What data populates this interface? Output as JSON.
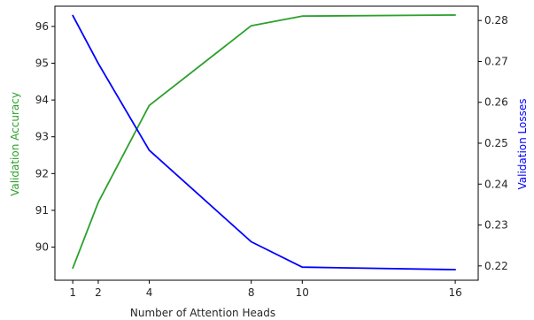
{
  "chart_data": {
    "type": "line",
    "title": "",
    "xlabel": "Number of Attention Heads",
    "ylabel_left": "Validation Accuracy",
    "ylabel_right": "Validation Losses",
    "x": [
      1,
      2,
      4,
      8,
      10,
      16
    ],
    "x_ticks": [
      1,
      2,
      4,
      8,
      10,
      16
    ],
    "xlim": [
      0.3,
      16.9
    ],
    "ylim_left": [
      89.1,
      96.55
    ],
    "ylim_right": [
      0.2165,
      0.2835
    ],
    "y_ticks_left": [
      90,
      91,
      92,
      93,
      94,
      95,
      96
    ],
    "y_ticks_right": [
      0.22,
      0.23,
      0.24,
      0.25,
      0.26,
      0.27,
      0.28
    ],
    "series": [
      {
        "axis": "left",
        "color": "#2ca02c",
        "values": [
          89.43,
          91.22,
          93.85,
          96.02,
          96.28,
          96.31
        ]
      },
      {
        "axis": "right",
        "color": "#0000ff",
        "values": [
          0.2812,
          0.2695,
          0.2483,
          0.2259,
          0.2197,
          0.2191
        ]
      }
    ],
    "grid": false,
    "legend": "none"
  }
}
